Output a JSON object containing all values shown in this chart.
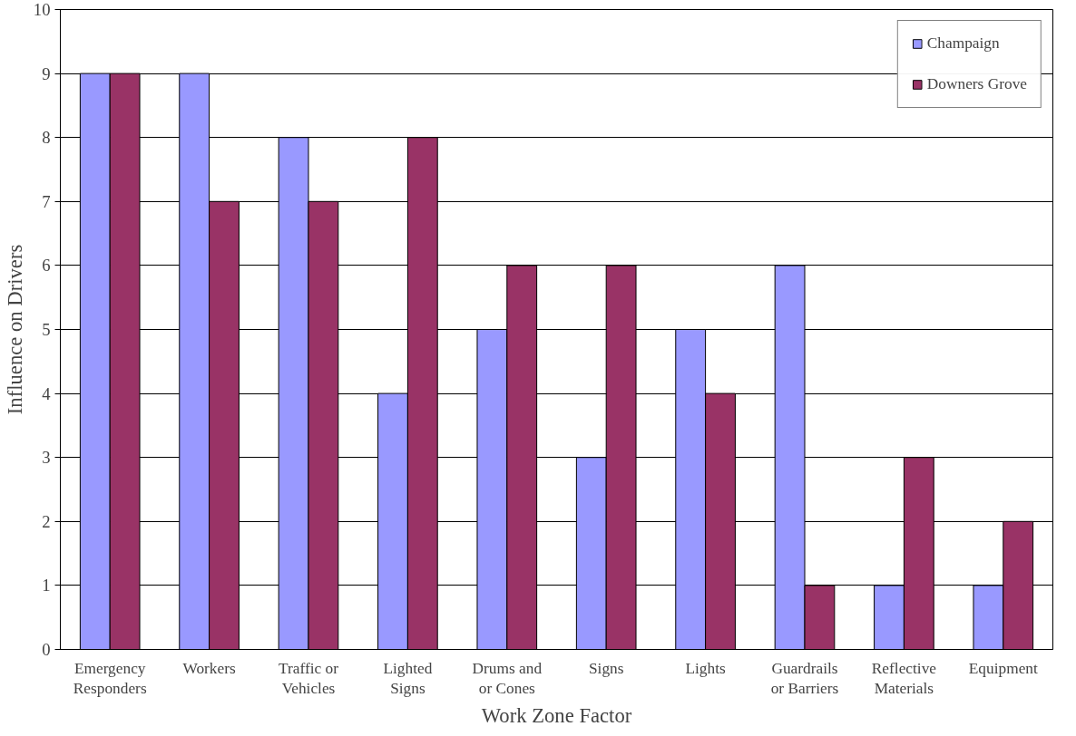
{
  "chart_data": {
    "type": "bar",
    "xlabel": "Work Zone Factor",
    "ylabel": "Influence on Drivers",
    "categories": [
      "Emergency\nResponders",
      "Workers",
      "Traffic or\nVehicles",
      "Lighted\nSigns",
      "Drums and\nor Cones",
      "Signs",
      "Lights",
      "Guardrails\nor Barriers",
      "Reflective\nMaterials",
      "Equipment"
    ],
    "series": [
      {
        "name": "Champaign",
        "color": "#9999ff",
        "values": [
          9,
          9,
          8,
          4,
          5,
          3,
          5,
          6,
          1,
          1
        ]
      },
      {
        "name": "Downers Grove",
        "color": "#993366",
        "values": [
          9,
          7,
          7,
          8,
          6,
          6,
          4,
          1,
          3,
          2
        ]
      }
    ],
    "ylim": [
      0,
      10
    ],
    "yticks": [
      0,
      1,
      2,
      3,
      4,
      5,
      6,
      7,
      8,
      9,
      10
    ],
    "grid": "y",
    "legend": "top right"
  }
}
